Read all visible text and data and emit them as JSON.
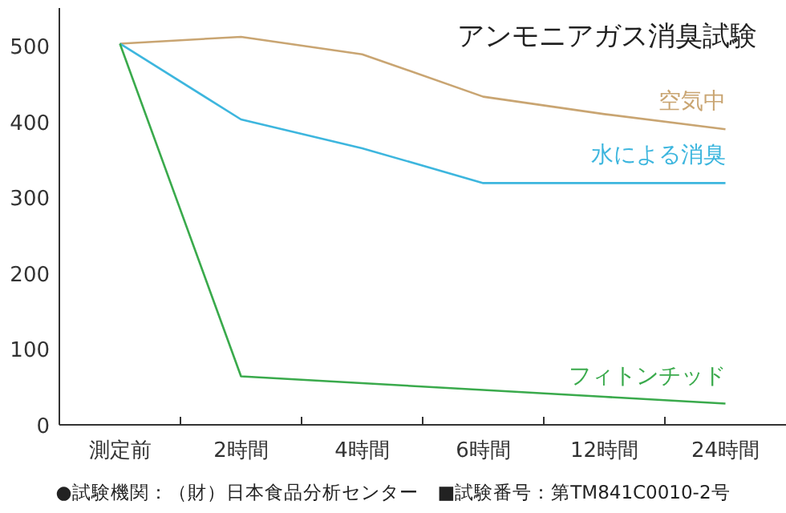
{
  "chart_data": {
    "type": "line",
    "title": "アンモニアガス消臭試験",
    "categories": [
      "測定前",
      "2時間",
      "4時間",
      "6時間",
      "12時間",
      "24時間"
    ],
    "series": [
      {
        "name": "空気中",
        "color": "#c9a572",
        "values": [
          503,
          512,
          489,
          433,
          410,
          390
        ]
      },
      {
        "name": "水による消臭",
        "color": "#3db6de",
        "values": [
          503,
          403,
          365,
          319,
          319,
          319
        ]
      },
      {
        "name": "フィトンチッド",
        "color": "#3aaa4c",
        "values": [
          503,
          64,
          55,
          46,
          37,
          28
        ]
      }
    ],
    "ylim": [
      0,
      550
    ],
    "yticks": [
      0,
      100,
      200,
      300,
      400,
      500
    ],
    "grid": false,
    "annotations": [
      "●試験機関：（財）日本食品分析センター　■試験番号：第TM841C0010-2号"
    ]
  }
}
